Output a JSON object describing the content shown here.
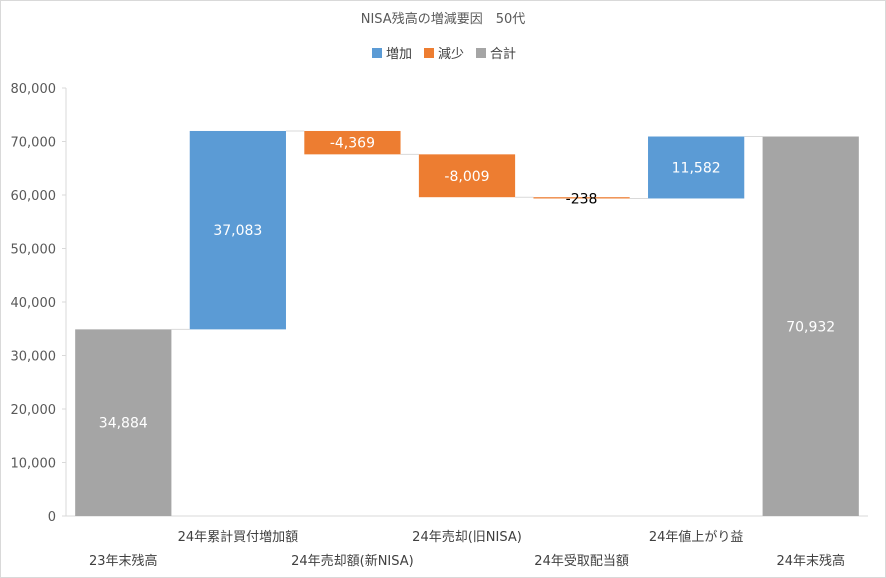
{
  "chart_data": {
    "type": "bar",
    "subtype": "waterfall",
    "title": "NISA残高の増減要因　50代",
    "legend": [
      {
        "name": "増加",
        "color": "#5b9bd5"
      },
      {
        "name": "減少",
        "color": "#ed7d31"
      },
      {
        "name": "合計",
        "color": "#a5a5a5"
      }
    ],
    "legend_position": "top",
    "ylim": [
      0,
      80000
    ],
    "yticks": [
      "0",
      "10,000",
      "20,000",
      "30,000",
      "40,000",
      "50,000",
      "60,000",
      "70,000",
      "80,000"
    ],
    "grid": false,
    "categories": [
      "23年末残高",
      "24年累計買付増加額",
      "24年売却額(新NISA)",
      "24年売却(旧NISA)",
      "24年受取配当額",
      "24年値上がり益",
      "24年末残高"
    ],
    "values": [
      34884,
      37083,
      -4369,
      -8009,
      -238,
      11582,
      70932
    ],
    "kinds": [
      "total",
      "increase",
      "decrease",
      "decrease",
      "decrease",
      "increase",
      "total"
    ],
    "data_labels": [
      "34,884",
      "37,083",
      "-4,369",
      "-8,009",
      "-238",
      "11,582",
      "70,932"
    ]
  }
}
